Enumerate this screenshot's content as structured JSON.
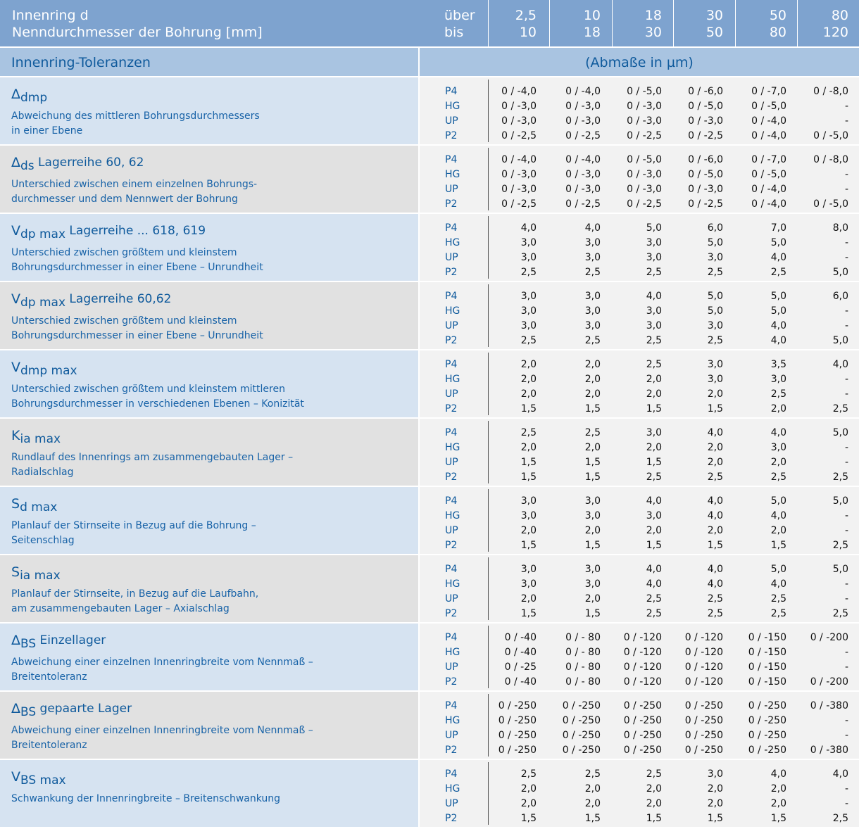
{
  "header": {
    "label_line1": "Innenring  d",
    "label_line2": "Nenndurchmesser der Bohrung [mm]",
    "ueber_label": "über",
    "bis_label": "bis",
    "ueber_values": [
      "2,5",
      "10",
      "18",
      "30",
      "50",
      "80"
    ],
    "bis_values": [
      "10",
      "18",
      "30",
      "50",
      "80",
      "120"
    ]
  },
  "section": {
    "label": "Innenring-Toleranzen",
    "unit_label": "(Abmaße in µm)"
  },
  "classes": [
    "P4",
    "HG",
    "UP",
    "P2"
  ],
  "rows": [
    {
      "sym": "Δ",
      "sub": "dmp",
      "ext": "",
      "desc": [
        "Abweichung des mittleren Bohrungsdurchmessers",
        "in einer Ebene"
      ],
      "values": [
        [
          "0 / -4,0",
          "0 / -4,0",
          "0 / -5,0",
          "0 / -6,0",
          "0 / -7,0",
          "0 / -8,0"
        ],
        [
          "0 / -3,0",
          "0 / -3,0",
          "0 / -3,0",
          "0 / -5,0",
          "0 / -5,0",
          "-"
        ],
        [
          "0 / -3,0",
          "0 / -3,0",
          "0 / -3,0",
          "0 / -3,0",
          "0 / -4,0",
          "-"
        ],
        [
          "0 / -2,5",
          "0 / -2,5",
          "0 / -2,5",
          "0 / -2,5",
          "0 / -4,0",
          "0 / -5,0"
        ]
      ]
    },
    {
      "sym": "Δ",
      "sub": "ds",
      "ext": " Lagerreihe 60, 62",
      "desc": [
        "Unterschied zwischen einem einzelnen Bohrungs-",
        "durchmesser und dem Nennwert der Bohrung"
      ],
      "values": [
        [
          "0 / -4,0",
          "0 / -4,0",
          "0 / -5,0",
          "0 / -6,0",
          "0 / -7,0",
          "0 / -8,0"
        ],
        [
          "0 / -3,0",
          "0 / -3,0",
          "0 / -3,0",
          "0 / -5,0",
          "0 / -5,0",
          "-"
        ],
        [
          "0 / -3,0",
          "0 / -3,0",
          "0 / -3,0",
          "0 / -3,0",
          "0 / -4,0",
          "-"
        ],
        [
          "0 / -2,5",
          "0 / -2,5",
          "0 / -2,5",
          "0 / -2,5",
          "0 / -4,0",
          "0 / -5,0"
        ]
      ]
    },
    {
      "sym": "V",
      "sub": "dp max",
      "ext": " Lagerreihe ... 618, 619",
      "desc": [
        "Unterschied zwischen größtem und kleinstem",
        "Bohrungsdurchmesser in einer Ebene – Unrundheit"
      ],
      "values": [
        [
          "4,0",
          "4,0",
          "5,0",
          "6,0",
          "7,0",
          "8,0"
        ],
        [
          "3,0",
          "3,0",
          "3,0",
          "5,0",
          "5,0",
          "-"
        ],
        [
          "3,0",
          "3,0",
          "3,0",
          "3,0",
          "4,0",
          "-"
        ],
        [
          "2,5",
          "2,5",
          "2,5",
          "2,5",
          "2,5",
          "5,0"
        ]
      ]
    },
    {
      "sym": "V",
      "sub": "dp max",
      "ext": " Lagerreihe 60,62",
      "desc": [
        "Unterschied zwischen größtem und kleinstem",
        "Bohrungsdurchmesser in einer Ebene – Unrundheit"
      ],
      "values": [
        [
          "3,0",
          "3,0",
          "4,0",
          "5,0",
          "5,0",
          "6,0"
        ],
        [
          "3,0",
          "3,0",
          "3,0",
          "5,0",
          "5,0",
          "-"
        ],
        [
          "3,0",
          "3,0",
          "3,0",
          "3,0",
          "4,0",
          "-"
        ],
        [
          "2,5",
          "2,5",
          "2,5",
          "2,5",
          "4,0",
          "5,0"
        ]
      ]
    },
    {
      "sym": "V",
      "sub": "dmp max",
      "ext": "",
      "desc": [
        "Unterschied zwischen größtem und kleinstem mittleren",
        "Bohrungsdurchmesser in verschiedenen Ebenen – Konizität"
      ],
      "values": [
        [
          "2,0",
          "2,0",
          "2,5",
          "3,0",
          "3,5",
          "4,0"
        ],
        [
          "2,0",
          "2,0",
          "2,0",
          "3,0",
          "3,0",
          "-"
        ],
        [
          "2,0",
          "2,0",
          "2,0",
          "2,0",
          "2,5",
          "-"
        ],
        [
          "1,5",
          "1,5",
          "1,5",
          "1,5",
          "2,0",
          "2,5"
        ]
      ]
    },
    {
      "sym": "K",
      "sub": "ia max",
      "ext": "",
      "desc": [
        "Rundlauf des Innenrings am zusammengebauten Lager –",
        "Radialschlag"
      ],
      "values": [
        [
          "2,5",
          "2,5",
          "3,0",
          "4,0",
          "4,0",
          "5,0"
        ],
        [
          "2,0",
          "2,0",
          "2,0",
          "2,0",
          "3,0",
          "-"
        ],
        [
          "1,5",
          "1,5",
          "1,5",
          "2,0",
          "2,0",
          "-"
        ],
        [
          "1,5",
          "1,5",
          "2,5",
          "2,5",
          "2,5",
          "2,5"
        ]
      ]
    },
    {
      "sym": "S",
      "sub": "d max",
      "ext": "",
      "desc": [
        "Planlauf der Stirnseite in Bezug auf die Bohrung –",
        "Seitenschlag"
      ],
      "values": [
        [
          "3,0",
          "3,0",
          "4,0",
          "4,0",
          "5,0",
          "5,0"
        ],
        [
          "3,0",
          "3,0",
          "3,0",
          "4,0",
          "4,0",
          "-"
        ],
        [
          "2,0",
          "2,0",
          "2,0",
          "2,0",
          "2,0",
          "-"
        ],
        [
          "1,5",
          "1,5",
          "1,5",
          "1,5",
          "1,5",
          "2,5"
        ]
      ]
    },
    {
      "sym": "S",
      "sub": "ia max",
      "ext": "",
      "desc": [
        "Planlauf der Stirnseite, in Bezug auf die Laufbahn,",
        "am zusammengebauten Lager – Axialschlag"
      ],
      "values": [
        [
          "3,0",
          "3,0",
          "4,0",
          "4,0",
          "5,0",
          "5,0"
        ],
        [
          "3,0",
          "3,0",
          "4,0",
          "4,0",
          "4,0",
          "-"
        ],
        [
          "2,0",
          "2,0",
          "2,5",
          "2,5",
          "2,5",
          "-"
        ],
        [
          "1,5",
          "1,5",
          "2,5",
          "2,5",
          "2,5",
          "2,5"
        ]
      ]
    },
    {
      "sym": "Δ",
      "sub": "BS",
      "ext": " Einzellager",
      "desc": [
        "Abweichung einer einzelnen Innenringbreite vom Nennmaß –",
        "Breitentoleranz"
      ],
      "values": [
        [
          "0 / -40",
          "0 / - 80",
          "0 / -120",
          "0 / -120",
          "0 / -150",
          "0 / -200"
        ],
        [
          "0 / -40",
          "0 / - 80",
          "0 / -120",
          "0 / -120",
          "0 / -150",
          "-"
        ],
        [
          "0 / -25",
          "0 / - 80",
          "0 / -120",
          "0 / -120",
          "0 / -150",
          "-"
        ],
        [
          "0 / -40",
          "0 / - 80",
          "0 / -120",
          "0 / -120",
          "0 / -150",
          "0 / -200"
        ]
      ]
    },
    {
      "sym": "Δ",
      "sub": "BS",
      "ext": " gepaarte Lager",
      "desc": [
        "Abweichung einer einzelnen Innenringbreite vom Nennmaß –",
        "Breitentoleranz"
      ],
      "values": [
        [
          "0 / -250",
          "0 / -250",
          "0 / -250",
          "0 / -250",
          "0 / -250",
          "0 / -380"
        ],
        [
          "0 / -250",
          "0 / -250",
          "0 / -250",
          "0 / -250",
          "0 / -250",
          "-"
        ],
        [
          "0 / -250",
          "0 / -250",
          "0 / -250",
          "0 / -250",
          "0 / -250",
          "-"
        ],
        [
          "0 / -250",
          "0 / -250",
          "0 / -250",
          "0 / -250",
          "0 / -250",
          "0 / -380"
        ]
      ]
    },
    {
      "sym": "V",
      "sub": "BS max",
      "ext": "",
      "desc": [
        "Schwankung der Innenringbreite – Breitenschwankung"
      ],
      "values": [
        [
          "2,5",
          "2,5",
          "2,5",
          "3,0",
          "4,0",
          "4,0"
        ],
        [
          "2,0",
          "2,0",
          "2,0",
          "2,0",
          "2,0",
          "-"
        ],
        [
          "2,0",
          "2,0",
          "2,0",
          "2,0",
          "2,0",
          "-"
        ],
        [
          "1,5",
          "1,5",
          "1,5",
          "1,5",
          "1,5",
          "2,5"
        ]
      ]
    }
  ]
}
